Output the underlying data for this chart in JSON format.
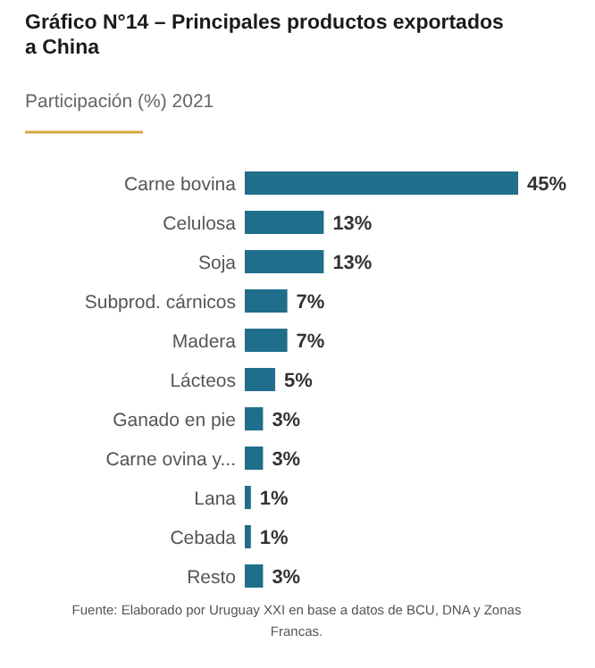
{
  "chart_data": {
    "type": "bar",
    "orientation": "horizontal",
    "title": "Gráfico N°14 – Principales productos exportados a China",
    "subtitle": "Participación (%) 2021",
    "categories": [
      "Carne bovina",
      "Celulosa",
      "Soja",
      "Subprod. cárnicos",
      "Madera",
      "Lácteos",
      "Ganado en pie",
      "Carne ovina y...",
      "Lana",
      "Cebada",
      "Resto"
    ],
    "values": [
      45,
      13,
      13,
      7,
      7,
      5,
      3,
      3,
      1,
      1,
      3
    ],
    "value_labels": [
      "45%",
      "13%",
      "13%",
      "7%",
      "7%",
      "5%",
      "3%",
      "3%",
      "1%",
      "1%",
      "3%"
    ],
    "color": "#1f6e8c",
    "annotations": [
      "Fuente: Elaborado por Uruguay XXI en base a datos de BCU, DNA y Zonas Francas."
    ]
  }
}
